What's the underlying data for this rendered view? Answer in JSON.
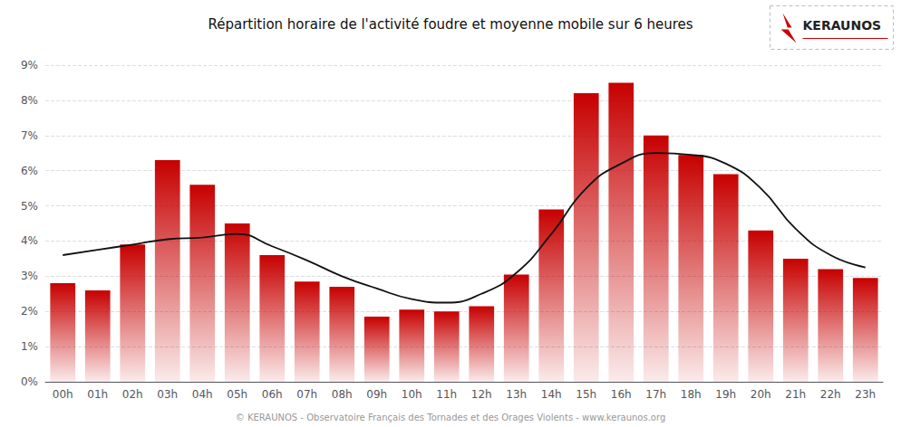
{
  "chart_data": {
    "type": "bar",
    "title": "Répartition horaire de l'activité foudre et moyenne mobile sur 6 heures",
    "annotations": [
      "© KERAUNOS - Observatoire Français des Tornades et des Orages Violents - www.keraunos.org",
      "KERAUNOS"
    ],
    "categories": [
      "00h",
      "01h",
      "02h",
      "03h",
      "04h",
      "05h",
      "06h",
      "07h",
      "08h",
      "09h",
      "10h",
      "11h",
      "12h",
      "13h",
      "14h",
      "15h",
      "16h",
      "17h",
      "18h",
      "19h",
      "20h",
      "21h",
      "22h",
      "23h"
    ],
    "series": [
      {
        "type": "bar",
        "color": "#c70000",
        "values": [
          2.8,
          2.6,
          3.9,
          6.3,
          5.6,
          4.5,
          3.6,
          2.85,
          2.7,
          1.85,
          2.05,
          2.0,
          2.15,
          3.05,
          4.9,
          8.2,
          8.5,
          7.0,
          6.45,
          5.9,
          4.3,
          3.5,
          3.2,
          2.95
        ]
      },
      {
        "type": "line",
        "color": "#111111",
        "values": [
          3.6,
          3.75,
          3.9,
          4.05,
          4.1,
          4.2,
          3.85,
          3.45,
          3.0,
          2.65,
          2.35,
          2.25,
          2.5,
          3.1,
          4.2,
          5.5,
          6.2,
          6.5,
          6.45,
          6.2,
          5.5,
          4.35,
          3.6,
          3.25
        ]
      }
    ],
    "ylim": [
      0,
      9
    ],
    "yticks": [
      {
        "value": 0,
        "label": "0%"
      },
      {
        "value": 1,
        "label": "1%"
      },
      {
        "value": 2,
        "label": "2%"
      },
      {
        "value": 3,
        "label": "3%"
      },
      {
        "value": 4,
        "label": "4%"
      },
      {
        "value": 5,
        "label": "5%"
      },
      {
        "value": 6,
        "label": "6%"
      },
      {
        "value": 7,
        "label": "7%"
      },
      {
        "value": 8,
        "label": "8%"
      },
      {
        "value": 9,
        "label": "9%"
      }
    ],
    "grid": true
  }
}
